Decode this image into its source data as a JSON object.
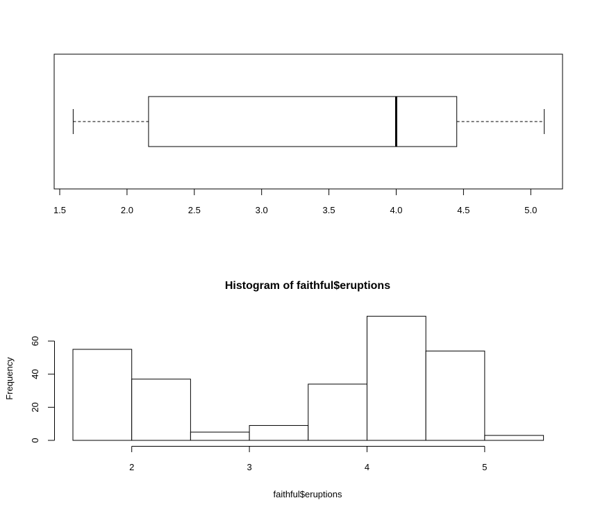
{
  "chart_data": [
    {
      "type": "boxplot",
      "orientation": "horizontal",
      "title": "",
      "xlabel": "",
      "ylabel": "",
      "xlim": [
        1.45,
        5.25
      ],
      "xticks": [
        1.5,
        2.0,
        2.5,
        3.0,
        3.5,
        4.0,
        4.5,
        5.0
      ],
      "xtick_labels": [
        "1.5",
        "2.0",
        "2.5",
        "3.0",
        "3.5",
        "4.0",
        "4.5",
        "5.0"
      ],
      "stats": {
        "whisker_low": 1.6,
        "q1": 2.16,
        "median": 4.0,
        "q3": 4.45,
        "whisker_high": 5.1
      },
      "grid": false
    },
    {
      "type": "bar",
      "subtype": "histogram",
      "title": "Histogram of faithful$eruptions",
      "xlabel": "faithful$eruptions",
      "ylabel": "Frequency",
      "bin_edges": [
        1.5,
        2.0,
        2.5,
        3.0,
        3.5,
        4.0,
        4.5,
        5.0,
        5.5
      ],
      "categories": [
        "1.5-2.0",
        "2.0-2.5",
        "2.5-3.0",
        "3.0-3.5",
        "3.5-4.0",
        "4.0-4.5",
        "4.5-5.0",
        "5.0-5.5"
      ],
      "values": [
        55,
        37,
        5,
        9,
        34,
        75,
        54,
        3
      ],
      "xticks": [
        2,
        3,
        4,
        5
      ],
      "xtick_labels": [
        "2",
        "3",
        "4",
        "5"
      ],
      "yticks": [
        0,
        20,
        40,
        60
      ],
      "ytick_labels": [
        "0",
        "20",
        "40",
        "60"
      ],
      "ylim": [
        0,
        75
      ],
      "grid": false
    }
  ],
  "colors": {
    "background": "#ffffff",
    "ink": "#000000",
    "bar_fill": "#ffffff"
  }
}
